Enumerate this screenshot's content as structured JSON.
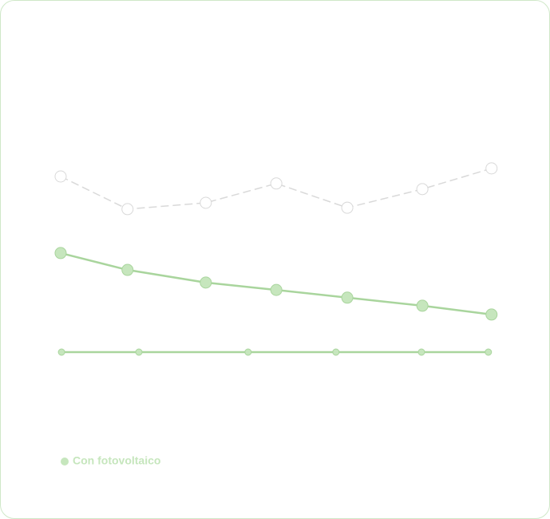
{
  "chart_data": {
    "type": "line",
    "xlim": [
      0,
      100
    ],
    "ylim": [
      0,
      100
    ],
    "series": [
      {
        "color": "#ffffff",
        "stroke": "#d9d9d9",
        "dashed": true,
        "marker_size": 7,
        "x": [
          2.8,
          17.5,
          34.7,
          50.2,
          65.8,
          82.3,
          97.5
        ],
        "values": [
          72.5,
          63.2,
          65,
          70.5,
          63.6,
          68.9,
          74.8
        ]
      },
      {
        "color": "#c6e6bd",
        "stroke": "#a9d59d",
        "dashed": false,
        "marker_size": 7,
        "x": [
          2.8,
          17.5,
          34.7,
          50.2,
          65.8,
          82.3,
          97.5
        ],
        "values": [
          50.7,
          45.9,
          42.3,
          40.2,
          38,
          35.7,
          33.2
        ]
      },
      {
        "name": "Con fotovoltaico",
        "color": "#c6e6bd",
        "stroke": "#a9d59d",
        "dashed": false,
        "marker_size": 4,
        "x": [
          3,
          20,
          44,
          63.3,
          82.1,
          96.8
        ],
        "values": [
          22.5,
          22.5,
          22.5,
          22.5,
          22.5,
          22.5
        ]
      }
    ]
  }
}
